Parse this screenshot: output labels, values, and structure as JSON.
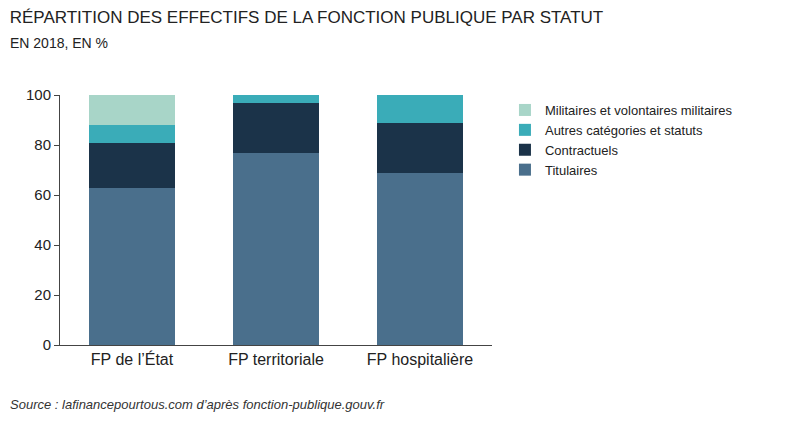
{
  "chart_data": {
    "type": "bar",
    "title": "RÉPARTITION DES EFFECTIFS DE LA FONCTION PUBLIQUE PAR STATUT",
    "subtitle": "EN 2018, EN %",
    "annotations": [
      "Source : lafinancepourtous.com d’après fonction-publique.gouv.fr"
    ],
    "categories": [
      "FP de l’État",
      "FP territoriale",
      "FP hospitalière"
    ],
    "series": [
      {
        "name": "Titulaires",
        "color": "#4a6f8c",
        "values": [
          63,
          77,
          69
        ]
      },
      {
        "name": "Contractuels",
        "color": "#1b3349",
        "values": [
          18,
          20,
          20
        ]
      },
      {
        "name": "Autres catégories et statuts",
        "color": "#3aacb8",
        "values": [
          7,
          3,
          11
        ]
      },
      {
        "name": "Militaires et volontaires militaires",
        "color": "#a8d5c8",
        "values": [
          12,
          0,
          0
        ]
      }
    ],
    "ylim": [
      0,
      100
    ],
    "yticks": [
      0,
      20,
      40,
      60,
      80,
      100
    ],
    "stacked": true,
    "grid": false,
    "legend": "right"
  }
}
